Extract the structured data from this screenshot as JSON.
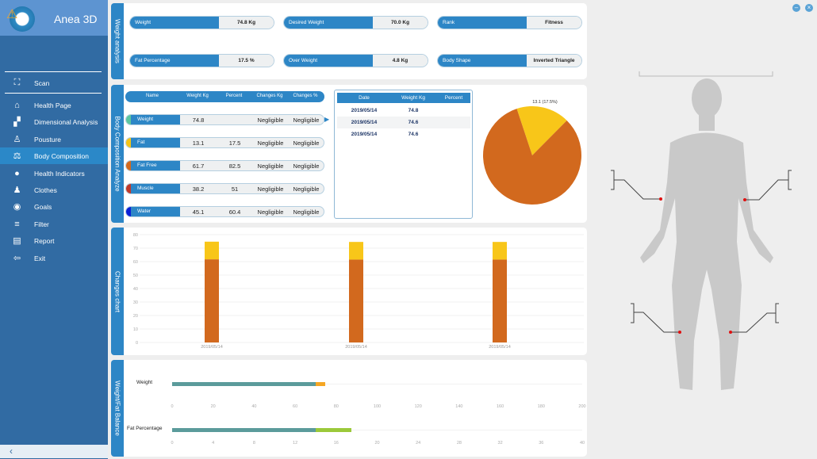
{
  "app": {
    "title": "Anea 3D",
    "collapse_icon": "chevron-left-icon"
  },
  "sidebar": {
    "items": [
      {
        "label": "Scan",
        "icon": "scan-icon"
      },
      {
        "label": "Health Page",
        "icon": "home-icon"
      },
      {
        "label": "Dimensional Analysis",
        "icon": "dimension-icon"
      },
      {
        "label": "Pousture",
        "icon": "posture-icon"
      },
      {
        "label": "Body Composition",
        "icon": "scale-icon",
        "selected": true
      },
      {
        "label": "Health Indicators",
        "icon": "apple-icon"
      },
      {
        "label": "Clothes",
        "icon": "clothes-icon"
      },
      {
        "label": "Goals",
        "icon": "target-icon"
      },
      {
        "label": "Filter",
        "icon": "filter-icon"
      },
      {
        "label": "Report",
        "icon": "clipboard-icon"
      },
      {
        "label": "Exit",
        "icon": "exit-icon"
      }
    ]
  },
  "weight_analysis": {
    "title": "Weight analysis",
    "fields": [
      {
        "label": "Weight",
        "value": "74.8 Kg"
      },
      {
        "label": "Desired Weight",
        "value": "70.0 Kg"
      },
      {
        "label": "Rank",
        "value": "Fitness"
      },
      {
        "label": "Fat Percentage",
        "value": "17.5 %"
      },
      {
        "label": "Over Weight",
        "value": "4.8 Kg"
      },
      {
        "label": "Body Shape",
        "value": "Inverted Triangle"
      }
    ]
  },
  "composition": {
    "title": "Body Composition Analyze",
    "headers": [
      "Name",
      "Weight Kg",
      "Percent",
      "Changes Kg",
      "Changes %"
    ],
    "rows": [
      {
        "name": "Weight",
        "weight": "74.8",
        "percent": "",
        "changes_kg": "Negligible",
        "changes_pct": "Negligible",
        "color": "#5cc6a0"
      },
      {
        "name": "Fat",
        "weight": "13.1",
        "percent": "17.5",
        "changes_kg": "Negligible",
        "changes_pct": "Negligible",
        "color": "#f5c518"
      },
      {
        "name": "Fat Free",
        "weight": "61.7",
        "percent": "82.5",
        "changes_kg": "Negligible",
        "changes_pct": "Negligible",
        "color": "#d2691e"
      },
      {
        "name": "Muscle",
        "weight": "38.2",
        "percent": "51",
        "changes_kg": "Negligible",
        "changes_pct": "Negligible",
        "color": "#c0392b"
      },
      {
        "name": "Water",
        "weight": "45.1",
        "percent": "60.4",
        "changes_kg": "Negligible",
        "changes_pct": "Negligible",
        "color": "#0a1fd6"
      }
    ],
    "history_headers": [
      "Date",
      "Weight Kg",
      "Percent"
    ],
    "history": [
      {
        "date": "2019/05/14",
        "weight": "74.8",
        "percent": ""
      },
      {
        "date": "2019/05/14",
        "weight": "74.6",
        "percent": ""
      },
      {
        "date": "2019/05/14",
        "weight": "74.6",
        "percent": ""
      }
    ]
  },
  "changes_chart_title": "Changes chart",
  "balance_title": "Weight/Fat Balance",
  "chart_data": [
    {
      "type": "pie",
      "slices": [
        {
          "label": "13.1 (17.5%)",
          "value": 13.1,
          "color": "#f8c619"
        },
        {
          "value": 61.7,
          "color": "#d2691e"
        }
      ]
    },
    {
      "type": "bar",
      "stacked": true,
      "categories": [
        "2019/05/14",
        "2019/05/14",
        "2019/05/14"
      ],
      "series": [
        {
          "values": [
            61.7,
            61.5,
            61.5
          ],
          "color": "#d2691e"
        },
        {
          "values": [
            13.1,
            13.1,
            13.1
          ],
          "color": "#f8c619"
        }
      ],
      "ylim": [
        0,
        80
      ],
      "yticks": [
        0,
        10,
        20,
        30,
        40,
        50,
        60,
        70,
        80
      ],
      "grid": true
    },
    {
      "type": "bar",
      "orientation": "horizontal",
      "rows": [
        {
          "label": "Weight",
          "base": 70,
          "extra": 74.8,
          "base_color": "#5b9b9b",
          "extra_color": "#f5a623",
          "xlim": [
            0,
            200
          ],
          "ticks": [
            0,
            20,
            40,
            60,
            80,
            100,
            120,
            140,
            160,
            180,
            200
          ]
        },
        {
          "label": "Fat Percentage",
          "base": 14,
          "extra": 17.5,
          "base_color": "#5b9b9b",
          "extra_color": "#9bc93a",
          "xlim": [
            0,
            40
          ],
          "ticks": [
            0,
            4,
            8,
            12,
            16,
            20,
            24,
            28,
            32,
            36,
            40
          ]
        }
      ]
    }
  ]
}
